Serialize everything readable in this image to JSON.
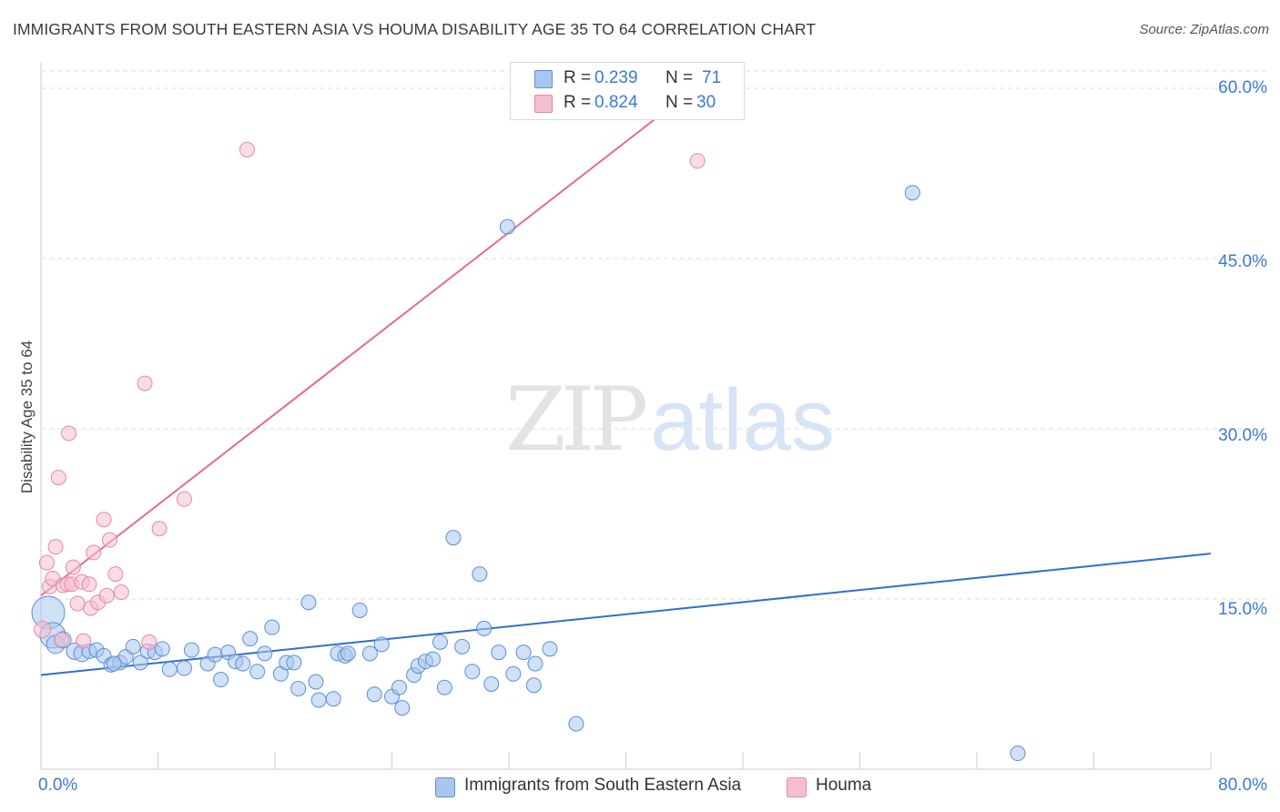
{
  "title": "IMMIGRANTS FROM SOUTH EASTERN ASIA VS HOUMA DISABILITY AGE 35 TO 64 CORRELATION CHART",
  "source": "Source: ZipAtlas.com",
  "watermark": {
    "zip": "ZIP",
    "atlas": "atlas"
  },
  "legend_top": [
    {
      "r_label": "R =",
      "r_value": "0.239",
      "n_label": "N =",
      "n_value": "71"
    },
    {
      "r_label": "R =",
      "r_value": "0.824",
      "n_label": "N =",
      "n_value": "30"
    }
  ],
  "legend_bottom": [
    "Immigrants from South Eastern Asia",
    "Houma"
  ],
  "y_tick_labels": [
    "60.0%",
    "45.0%",
    "30.0%",
    "15.0%"
  ],
  "x_tick_labels": [
    "0.0%",
    "80.0%"
  ],
  "ylabel": "Disability Age 35 to 64",
  "colors": {
    "blue_fill": "#a9c7ee",
    "blue_stroke": "#5b8fd6",
    "blue_line": "#2f6fcf",
    "pink_fill": "#f6bfd0",
    "pink_stroke": "#e487a6",
    "pink_line": "#e36b93",
    "tick_text": "#3b78d8",
    "grid": "#dddddd"
  },
  "chart_data": {
    "type": "scatter",
    "title": "IMMIGRANTS FROM SOUTH EASTERN ASIA VS HOUMA DISABILITY AGE 35 TO 64 CORRELATION CHART",
    "xlabel": "",
    "ylabel": "Disability Age 35 to 64",
    "xlim": [
      0,
      80
    ],
    "ylim": [
      0,
      62.5
    ],
    "y_ticks": [
      15,
      30,
      45,
      60
    ],
    "x_ticks": [
      0,
      80
    ],
    "grid": true,
    "legend_position": "bottom",
    "series": [
      {
        "name": "Immigrants from South Eastern Asia",
        "r": 0.239,
        "n": 71,
        "trend": {
          "x": [
            0,
            80
          ],
          "y": [
            8.3,
            19.0
          ]
        },
        "points": [
          {
            "x": 0.5,
            "y": 13.8,
            "s": 18
          },
          {
            "x": 0.8,
            "y": 11.8,
            "s": 14
          },
          {
            "x": 1.0,
            "y": 11.0,
            "s": 10
          },
          {
            "x": 1.5,
            "y": 11.4,
            "s": 9
          },
          {
            "x": 2.3,
            "y": 10.4,
            "s": 9
          },
          {
            "x": 2.8,
            "y": 10.2,
            "s": 9
          },
          {
            "x": 3.3,
            "y": 10.4,
            "s": 8
          },
          {
            "x": 3.8,
            "y": 10.5,
            "s": 8
          },
          {
            "x": 4.3,
            "y": 10.0,
            "s": 8
          },
          {
            "x": 4.8,
            "y": 9.2,
            "s": 8
          },
          {
            "x": 5.4,
            "y": 9.4,
            "s": 8
          },
          {
            "x": 5.8,
            "y": 9.9,
            "s": 8
          },
          {
            "x": 6.3,
            "y": 10.8,
            "s": 8
          },
          {
            "x": 6.8,
            "y": 9.4,
            "s": 8
          },
          {
            "x": 7.3,
            "y": 10.4,
            "s": 8
          },
          {
            "x": 7.8,
            "y": 10.3,
            "s": 8
          },
          {
            "x": 8.3,
            "y": 10.6,
            "s": 8
          },
          {
            "x": 8.8,
            "y": 8.8,
            "s": 8
          },
          {
            "x": 9.8,
            "y": 8.9,
            "s": 8
          },
          {
            "x": 10.3,
            "y": 10.5,
            "s": 8
          },
          {
            "x": 11.4,
            "y": 9.3,
            "s": 8
          },
          {
            "x": 11.9,
            "y": 10.1,
            "s": 8
          },
          {
            "x": 12.3,
            "y": 7.9,
            "s": 8
          },
          {
            "x": 12.8,
            "y": 10.3,
            "s": 8
          },
          {
            "x": 13.3,
            "y": 9.5,
            "s": 8
          },
          {
            "x": 13.8,
            "y": 9.3,
            "s": 8
          },
          {
            "x": 14.3,
            "y": 11.5,
            "s": 8
          },
          {
            "x": 14.8,
            "y": 8.6,
            "s": 8
          },
          {
            "x": 15.3,
            "y": 10.2,
            "s": 8
          },
          {
            "x": 15.8,
            "y": 12.5,
            "s": 8
          },
          {
            "x": 16.4,
            "y": 8.4,
            "s": 8
          },
          {
            "x": 16.8,
            "y": 9.4,
            "s": 8
          },
          {
            "x": 17.3,
            "y": 9.4,
            "s": 8
          },
          {
            "x": 17.6,
            "y": 7.1,
            "s": 8
          },
          {
            "x": 18.3,
            "y": 14.7,
            "s": 8
          },
          {
            "x": 18.8,
            "y": 7.7,
            "s": 8
          },
          {
            "x": 19.0,
            "y": 6.1,
            "s": 8
          },
          {
            "x": 20.0,
            "y": 6.2,
            "s": 8
          },
          {
            "x": 20.3,
            "y": 10.2,
            "s": 8
          },
          {
            "x": 20.8,
            "y": 10.0,
            "s": 8
          },
          {
            "x": 21.8,
            "y": 14.0,
            "s": 8
          },
          {
            "x": 22.5,
            "y": 10.2,
            "s": 8
          },
          {
            "x": 22.8,
            "y": 6.6,
            "s": 8
          },
          {
            "x": 23.3,
            "y": 11.0,
            "s": 8
          },
          {
            "x": 24.0,
            "y": 6.4,
            "s": 8
          },
          {
            "x": 24.5,
            "y": 7.2,
            "s": 8
          },
          {
            "x": 24.7,
            "y": 5.4,
            "s": 8
          },
          {
            "x": 25.5,
            "y": 8.3,
            "s": 8
          },
          {
            "x": 25.8,
            "y": 9.1,
            "s": 8
          },
          {
            "x": 26.3,
            "y": 9.5,
            "s": 8
          },
          {
            "x": 26.8,
            "y": 9.7,
            "s": 8
          },
          {
            "x": 27.3,
            "y": 11.2,
            "s": 8
          },
          {
            "x": 27.6,
            "y": 7.2,
            "s": 8
          },
          {
            "x": 28.2,
            "y": 20.4,
            "s": 8
          },
          {
            "x": 28.8,
            "y": 10.8,
            "s": 8
          },
          {
            "x": 29.5,
            "y": 8.6,
            "s": 8
          },
          {
            "x": 30.0,
            "y": 17.2,
            "s": 8
          },
          {
            "x": 30.3,
            "y": 12.4,
            "s": 8
          },
          {
            "x": 30.8,
            "y": 7.5,
            "s": 8
          },
          {
            "x": 31.3,
            "y": 10.3,
            "s": 8
          },
          {
            "x": 31.9,
            "y": 47.8,
            "s": 8
          },
          {
            "x": 32.3,
            "y": 8.4,
            "s": 8
          },
          {
            "x": 33.0,
            "y": 10.3,
            "s": 8
          },
          {
            "x": 33.8,
            "y": 9.3,
            "s": 8
          },
          {
            "x": 33.7,
            "y": 7.4,
            "s": 8
          },
          {
            "x": 34.8,
            "y": 10.6,
            "s": 8
          },
          {
            "x": 36.6,
            "y": 4.0,
            "s": 8
          },
          {
            "x": 59.6,
            "y": 50.8,
            "s": 8
          },
          {
            "x": 66.8,
            "y": 1.4,
            "s": 8
          },
          {
            "x": 5.0,
            "y": 9.3,
            "s": 8
          },
          {
            "x": 21.0,
            "y": 10.2,
            "s": 8
          }
        ]
      },
      {
        "name": "Houma",
        "r": 0.824,
        "n": 30,
        "trend": {
          "x": [
            0,
            44.9
          ],
          "y": [
            15.3,
            60.2
          ]
        },
        "points": [
          {
            "x": 0.1,
            "y": 12.3,
            "s": 9
          },
          {
            "x": 0.4,
            "y": 18.2,
            "s": 8
          },
          {
            "x": 0.6,
            "y": 16.1,
            "s": 8
          },
          {
            "x": 0.8,
            "y": 16.8,
            "s": 8
          },
          {
            "x": 1.0,
            "y": 19.6,
            "s": 8
          },
          {
            "x": 1.2,
            "y": 25.7,
            "s": 8
          },
          {
            "x": 1.5,
            "y": 16.2,
            "s": 8
          },
          {
            "x": 1.8,
            "y": 16.3,
            "s": 8
          },
          {
            "x": 1.9,
            "y": 29.6,
            "s": 8
          },
          {
            "x": 2.1,
            "y": 16.3,
            "s": 8
          },
          {
            "x": 2.2,
            "y": 17.8,
            "s": 8
          },
          {
            "x": 2.8,
            "y": 16.5,
            "s": 8
          },
          {
            "x": 2.9,
            "y": 11.3,
            "s": 8
          },
          {
            "x": 3.3,
            "y": 16.3,
            "s": 8
          },
          {
            "x": 3.4,
            "y": 14.2,
            "s": 8
          },
          {
            "x": 3.6,
            "y": 19.1,
            "s": 8
          },
          {
            "x": 3.9,
            "y": 14.7,
            "s": 8
          },
          {
            "x": 4.3,
            "y": 22.0,
            "s": 8
          },
          {
            "x": 4.5,
            "y": 15.3,
            "s": 8
          },
          {
            "x": 4.7,
            "y": 20.2,
            "s": 8
          },
          {
            "x": 5.1,
            "y": 17.2,
            "s": 8
          },
          {
            "x": 5.5,
            "y": 15.6,
            "s": 8
          },
          {
            "x": 7.1,
            "y": 34.0,
            "s": 8
          },
          {
            "x": 7.4,
            "y": 11.2,
            "s": 8
          },
          {
            "x": 8.1,
            "y": 21.2,
            "s": 8
          },
          {
            "x": 9.8,
            "y": 23.8,
            "s": 8
          },
          {
            "x": 14.1,
            "y": 54.6,
            "s": 8
          },
          {
            "x": 44.9,
            "y": 53.6,
            "s": 8
          },
          {
            "x": 1.4,
            "y": 11.4,
            "s": 8
          },
          {
            "x": 2.5,
            "y": 14.6,
            "s": 8
          }
        ]
      }
    ]
  }
}
